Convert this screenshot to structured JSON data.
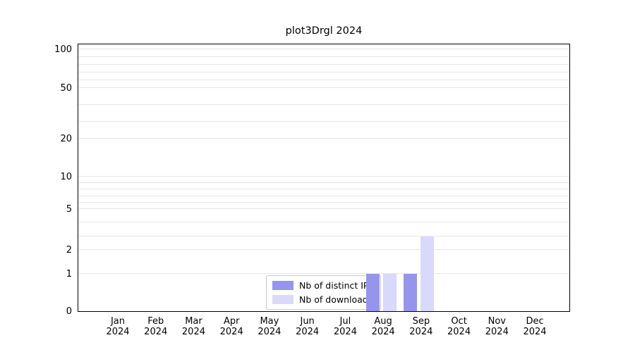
{
  "title": "plot3Drgl 2024",
  "chart_data": {
    "type": "bar",
    "title": "plot3Drgl 2024",
    "xlabel": "",
    "ylabel": "",
    "x_categories": [
      "Jan",
      "Feb",
      "Mar",
      "Apr",
      "May",
      "Jun",
      "Jul",
      "Aug",
      "Sep",
      "Oct",
      "Nov",
      "Dec"
    ],
    "x_year": "2024",
    "series": [
      {
        "name": "Nb of distinct IPs",
        "color": "#9595ee",
        "values": [
          0,
          0,
          0,
          0,
          0,
          0,
          0,
          1,
          1,
          0,
          0,
          0
        ]
      },
      {
        "name": "Nb of downloads",
        "color": "#d9d9fb",
        "values": [
          0,
          0,
          0,
          0,
          0,
          0,
          0,
          1,
          3,
          0,
          0,
          0
        ]
      }
    ],
    "y_ticks": [
      0,
      1,
      2,
      5,
      10,
      20,
      50,
      100
    ],
    "ylim": [
      0,
      100
    ],
    "y_scale": "log-like",
    "y_scale_anchors": [
      [
        0,
        0
      ],
      [
        1,
        0.139
      ],
      [
        2,
        0.228
      ],
      [
        5,
        0.381
      ],
      [
        10,
        0.501
      ],
      [
        20,
        0.643
      ],
      [
        50,
        0.832
      ],
      [
        100,
        0.976
      ]
    ],
    "gridline_values": [
      1,
      2,
      3,
      4,
      5,
      6,
      7,
      8,
      9,
      10,
      20,
      30,
      40,
      50,
      60,
      70,
      80,
      90,
      100
    ],
    "grid": true,
    "grid_color": "#e7e7e7",
    "legend_position": "bottom-center",
    "legend": {
      "entries": [
        "Nb of distinct IPs",
        "Nb of downloads"
      ]
    }
  }
}
